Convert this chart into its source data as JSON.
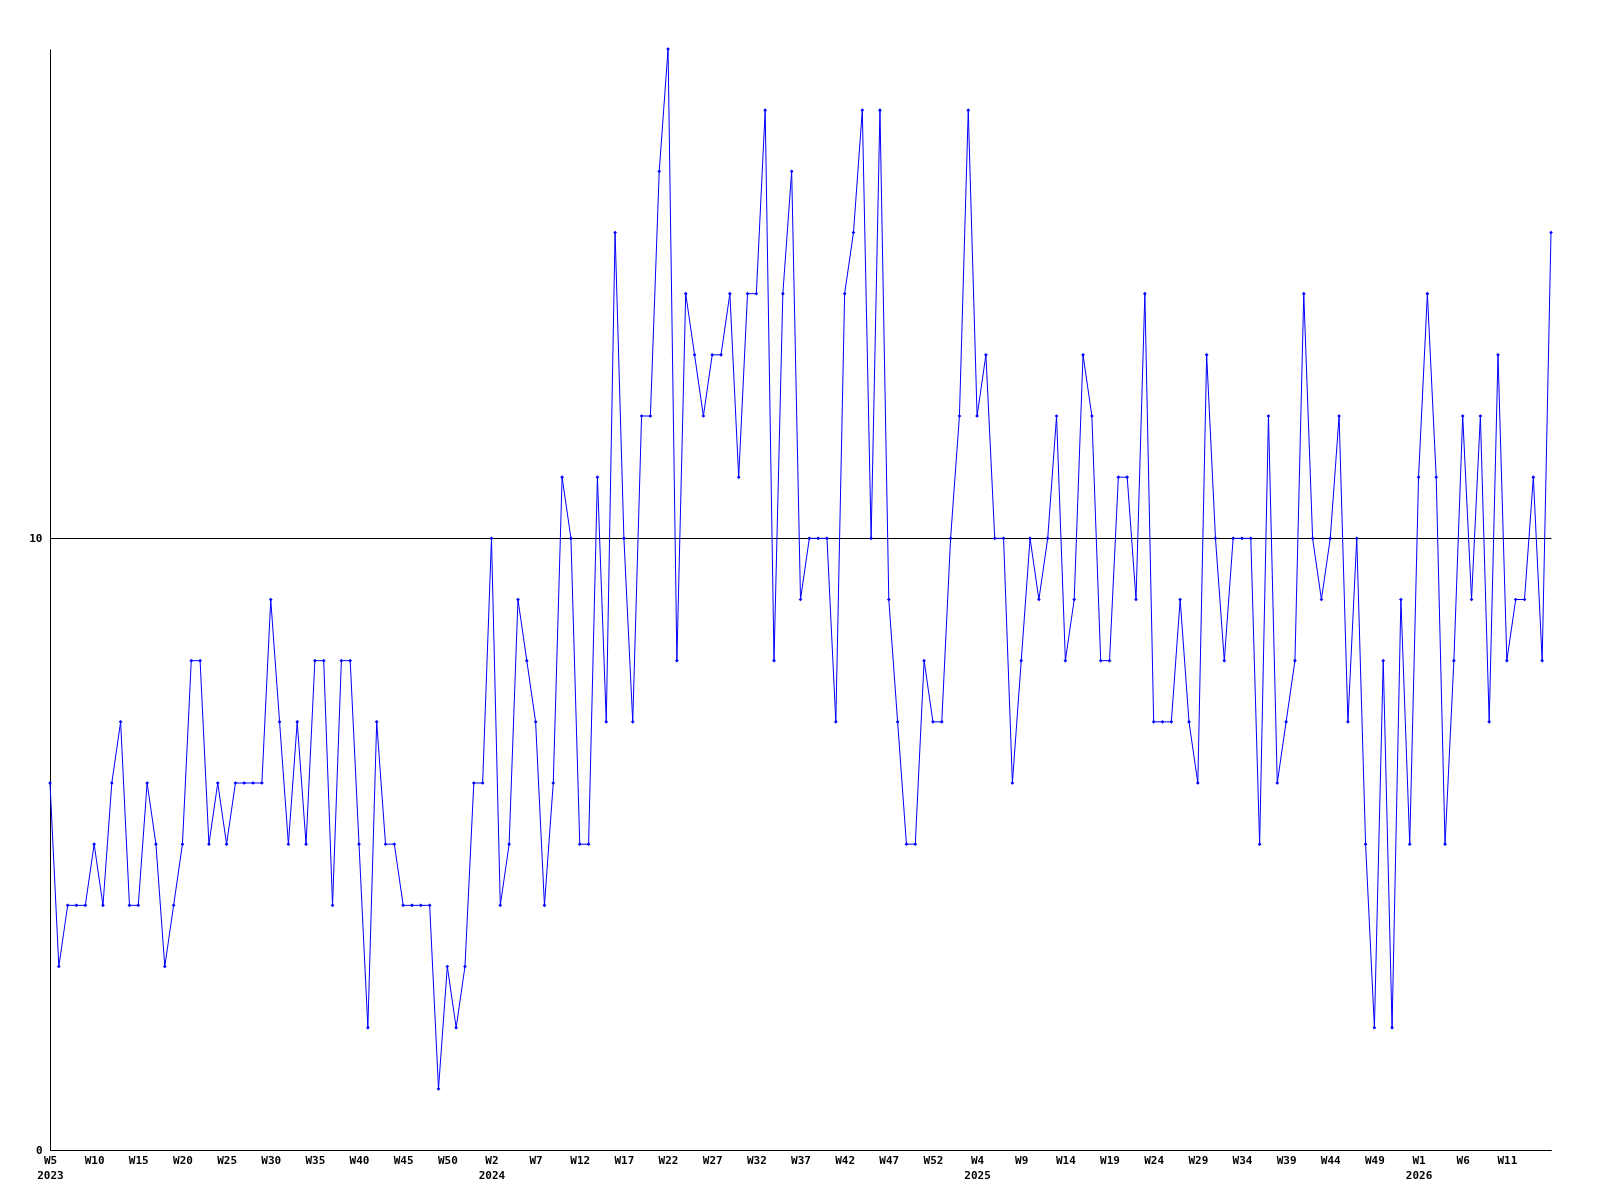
{
  "chart_data": {
    "type": "line",
    "color": "#0000ff",
    "marker": "diamond",
    "line_style": "solid",
    "grid": "y",
    "ylim": [
      0,
      18
    ],
    "yticks": [
      0,
      10
    ],
    "categories": [
      "W5\n2023",
      null,
      null,
      null,
      null,
      "W10",
      null,
      null,
      null,
      null,
      "W15",
      null,
      null,
      null,
      null,
      "W20",
      null,
      null,
      null,
      null,
      "W25",
      null,
      null,
      null,
      null,
      "W30",
      null,
      null,
      null,
      null,
      "W35",
      null,
      null,
      null,
      null,
      "W40",
      null,
      null,
      null,
      null,
      "W45",
      null,
      null,
      null,
      null,
      "W50",
      null,
      null,
      null,
      null,
      "W2\n2024",
      null,
      null,
      null,
      null,
      "W7",
      null,
      null,
      null,
      null,
      "W12",
      null,
      null,
      null,
      null,
      "W17",
      null,
      null,
      null,
      null,
      "W22",
      null,
      null,
      null,
      null,
      "W27",
      null,
      null,
      null,
      null,
      "W32",
      null,
      null,
      null,
      null,
      "W37",
      null,
      null,
      null,
      null,
      "W42",
      null,
      null,
      null,
      null,
      "W47",
      null,
      null,
      null,
      null,
      "W52",
      null,
      null,
      null,
      null,
      "W4\n2025",
      null,
      null,
      null,
      null,
      "W9",
      null,
      null,
      null,
      null,
      "W14",
      null,
      null,
      null,
      null,
      "W19",
      null,
      null,
      null,
      null,
      "W24",
      null,
      null,
      null,
      null,
      "W29",
      null,
      null,
      null,
      null,
      "W34",
      null,
      null,
      null,
      null,
      "W39",
      null,
      null,
      null,
      null,
      "W44",
      null,
      null,
      null,
      null,
      "W49",
      null,
      null,
      null,
      null,
      "W1\n2026",
      null,
      null,
      null,
      null,
      "W6",
      null,
      null,
      null,
      null,
      "W11",
      null,
      null,
      null,
      null,
      null
    ],
    "values": [
      6,
      3,
      4,
      4,
      4,
      5,
      4,
      6,
      7,
      4,
      4,
      6,
      5,
      3,
      4,
      5,
      8,
      8,
      5,
      6,
      5,
      6,
      6,
      6,
      6,
      9,
      7,
      5,
      7,
      5,
      8,
      8,
      4,
      8,
      8,
      5,
      2,
      7,
      5,
      5,
      4,
      4,
      4,
      4,
      1,
      3,
      2,
      3,
      6,
      6,
      10,
      4,
      5,
      9,
      8,
      7,
      4,
      6,
      11,
      10,
      5,
      5,
      11,
      7,
      15,
      10,
      7,
      12,
      12,
      16,
      18,
      8,
      14,
      13,
      12,
      13,
      13,
      14,
      11,
      14,
      14,
      17,
      8,
      14,
      16,
      9,
      10,
      10,
      10,
      7,
      14,
      15,
      17,
      10,
      17,
      9,
      7,
      5,
      5,
      8,
      7,
      7,
      10,
      12,
      17,
      12,
      13,
      10,
      10,
      6,
      8,
      10,
      9,
      10,
      12,
      8,
      9,
      13,
      12,
      8,
      8,
      11,
      11,
      9,
      14,
      7,
      7,
      7,
      9,
      7,
      6,
      13,
      10,
      8,
      10,
      10,
      10,
      5,
      12,
      6,
      7,
      8,
      14,
      10,
      9,
      10,
      12,
      7,
      10,
      5,
      2,
      8,
      2,
      9,
      5,
      11,
      14,
      11,
      5,
      8,
      12,
      9,
      12,
      7,
      13,
      8,
      9,
      9,
      11,
      8,
      15
    ]
  }
}
